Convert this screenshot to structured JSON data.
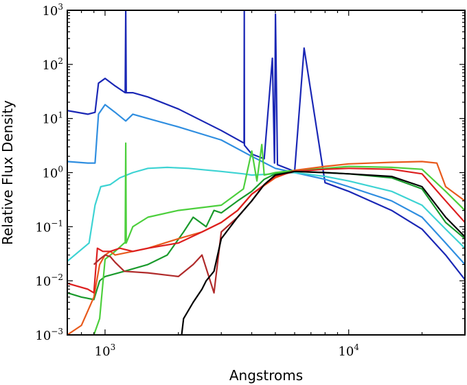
{
  "chart_data": {
    "type": "line",
    "title": "",
    "xlabel": "Angstroms",
    "ylabel": "Relative Flux Density",
    "xscale": "log",
    "yscale": "log",
    "xlim": [
      700,
      30000
    ],
    "ylim": [
      0.001,
      1000
    ],
    "grid": false,
    "legend": "none",
    "x_ticks": [
      {
        "base": "10",
        "exp": "3",
        "value": 1000
      },
      {
        "base": "10",
        "exp": "4",
        "value": 10000
      }
    ],
    "y_ticks": [
      {
        "base": "10",
        "exp": "−3",
        "value": 0.001
      },
      {
        "base": "10",
        "exp": "−2",
        "value": 0.01
      },
      {
        "base": "10",
        "exp": "−1",
        "value": 0.1
      },
      {
        "base": "10",
        "exp": "0",
        "value": 1
      },
      {
        "base": "10",
        "exp": "1",
        "value": 10
      },
      {
        "base": "10",
        "exp": "2",
        "value": 100
      },
      {
        "base": "10",
        "exp": "3",
        "value": 1000
      }
    ],
    "series": [
      {
        "color": "#1a27b5",
        "x": [
          700,
          850,
          910,
          940,
          1000,
          1100,
          1210,
          1216,
          1222,
          1300,
          1500,
          2000,
          3000,
          3720,
          3727,
          3734,
          4000,
          4500,
          4861,
          4959,
          5007,
          5100,
          6000,
          6563,
          8000,
          10000,
          15000,
          20000,
          25000,
          30000
        ],
        "y": [
          14,
          12,
          13,
          45,
          55,
          40,
          30,
          1000,
          30,
          30,
          25,
          15,
          6,
          3.5,
          1000,
          3.2,
          2.2,
          1.8,
          130,
          1.5,
          850,
          1.4,
          1.05,
          200,
          0.65,
          0.45,
          0.2,
          0.09,
          0.03,
          0.0105
        ]
      },
      {
        "color": "#2f8ee0",
        "x": [
          700,
          850,
          910,
          940,
          1000,
          1100,
          1216,
          1300,
          1500,
          2000,
          3000,
          4000,
          5000,
          6000,
          8000,
          10000,
          15000,
          20000,
          25000,
          30000
        ],
        "y": [
          1.6,
          1.5,
          1.5,
          12,
          18,
          13,
          9,
          12,
          10,
          7,
          4,
          2,
          1.2,
          1.0,
          0.75,
          0.55,
          0.3,
          0.15,
          0.05,
          0.02
        ]
      },
      {
        "color": "#3dd3d3",
        "x": [
          700,
          860,
          910,
          960,
          1050,
          1150,
          1300,
          1500,
          1800,
          2200,
          3000,
          3700,
          4000,
          5000,
          6000,
          8000,
          10000,
          15000,
          20000,
          25000,
          30000
        ],
        "y": [
          0.023,
          0.05,
          0.25,
          0.55,
          0.6,
          0.8,
          1.0,
          1.2,
          1.25,
          1.2,
          1.05,
          0.95,
          0.9,
          0.95,
          1.0,
          0.85,
          0.7,
          0.45,
          0.25,
          0.09,
          0.04
        ]
      },
      {
        "color": "#1a9a2c",
        "x": [
          700,
          800,
          900,
          950,
          1000,
          1200,
          1500,
          1800,
          2100,
          2300,
          2600,
          2800,
          3000,
          3500,
          4000,
          4500,
          5000,
          6000,
          8000,
          10000,
          15000,
          20000,
          25000,
          30000
        ],
        "y": [
          0.006,
          0.005,
          0.0045,
          0.01,
          0.012,
          0.015,
          0.02,
          0.03,
          0.08,
          0.15,
          0.1,
          0.2,
          0.18,
          0.3,
          0.45,
          0.75,
          0.95,
          1.05,
          1.0,
          0.95,
          0.8,
          0.5,
          0.12,
          0.06
        ]
      },
      {
        "color": "#4ccf3c",
        "x": [
          900,
          950,
          1000,
          1100,
          1200,
          1210,
          1216,
          1222,
          1300,
          1500,
          2000,
          3000,
          3700,
          4000,
          4200,
          4400,
          4500,
          5000,
          6000,
          8000,
          10000,
          15000,
          20000,
          25000,
          30000
        ],
        "y": [
          0.001,
          0.002,
          0.025,
          0.035,
          0.05,
          0.05,
          3.5,
          0.05,
          0.1,
          0.15,
          0.2,
          0.25,
          0.5,
          2.5,
          0.7,
          3.3,
          0.9,
          1.0,
          1.1,
          1.2,
          1.3,
          1.25,
          1.15,
          0.45,
          0.2
        ]
      },
      {
        "color": "#e85a1c",
        "x": [
          700,
          800,
          900,
          950,
          1000,
          1050,
          1100,
          1300,
          1500,
          2000,
          2500,
          3000,
          3500,
          4000,
          5000,
          6000,
          8000,
          10000,
          15000,
          20000,
          23000,
          25000,
          30000
        ],
        "y": [
          0.001,
          0.0015,
          0.005,
          0.02,
          0.03,
          0.035,
          0.03,
          0.035,
          0.04,
          0.06,
          0.08,
          0.12,
          0.2,
          0.4,
          0.8,
          1.1,
          1.3,
          1.45,
          1.55,
          1.6,
          1.5,
          0.55,
          0.3
        ]
      },
      {
        "color": "#dd1f1f",
        "x": [
          700,
          850,
          900,
          930,
          980,
          1050,
          1150,
          1300,
          1500,
          2000,
          2500,
          3000,
          3500,
          4000,
          5000,
          6000,
          8000,
          10000,
          15000,
          20000,
          25000,
          30000
        ],
        "y": [
          0.009,
          0.007,
          0.006,
          0.04,
          0.035,
          0.035,
          0.04,
          0.035,
          0.04,
          0.05,
          0.08,
          0.12,
          0.2,
          0.4,
          0.85,
          1.05,
          1.15,
          1.2,
          1.15,
          0.95,
          0.3,
          0.12
        ]
      },
      {
        "color": "#b02a2a",
        "x": [
          900,
          950,
          1000,
          1050,
          1100,
          1200,
          1500,
          2000,
          2300,
          2500,
          2800,
          3000,
          3500,
          4000,
          4500
        ],
        "y": [
          0.02,
          0.025,
          0.03,
          0.028,
          0.022,
          0.015,
          0.014,
          0.012,
          0.02,
          0.03,
          0.006,
          0.08,
          0.15,
          0.3,
          0.6
        ]
      },
      {
        "color": "#000000",
        "x": [
          2050,
          2100,
          2300,
          2500,
          2600,
          2800,
          3000,
          3500,
          4000,
          4500,
          5000,
          6000,
          8000,
          10000,
          15000,
          20000,
          25000,
          30000
        ],
        "y": [
          0.0008,
          0.002,
          0.004,
          0.007,
          0.01,
          0.015,
          0.06,
          0.15,
          0.3,
          0.6,
          0.9,
          1.05,
          1.0,
          0.95,
          0.85,
          0.55,
          0.15,
          0.065
        ]
      }
    ]
  }
}
